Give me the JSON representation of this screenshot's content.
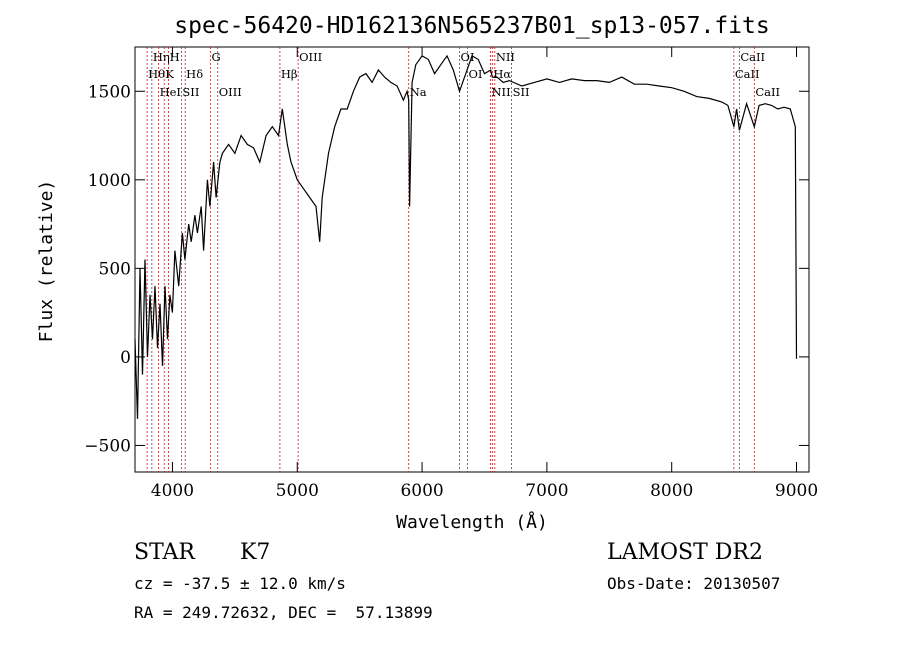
{
  "chart_data": {
    "type": "line",
    "title": "spec-56420-HD162136N565237B01_sp13-057.fits",
    "xlabel": "Wavelength (Å)",
    "ylabel": "Flux (relative)",
    "xlim": [
      3700,
      9100
    ],
    "ylim": [
      -650,
      1750
    ],
    "xticks": [
      4000,
      5000,
      6000,
      7000,
      8000,
      9000
    ],
    "yticks": [
      -500,
      0,
      500,
      1000,
      1500
    ],
    "grid": false,
    "line_color": "#000000",
    "marker_color": "#aa2222",
    "spectral_lines": [
      {
        "label": "Hη",
        "x": 3835,
        "row": 0
      },
      {
        "label": "H",
        "x": 3969,
        "row": 0
      },
      {
        "label": "G",
        "x": 4305,
        "row": 0
      },
      {
        "label": "OIII",
        "x": 5007,
        "row": 0
      },
      {
        "label": "OI",
        "x": 6300,
        "row": 0
      },
      {
        "label": "NII",
        "x": 6583,
        "row": 0
      },
      {
        "label": "CaII",
        "x": 8542,
        "row": 0
      },
      {
        "label": "Hθ",
        "x": 3797,
        "row": 1
      },
      {
        "label": "K",
        "x": 3934,
        "row": 1
      },
      {
        "label": "Hδ",
        "x": 4102,
        "row": 1
      },
      {
        "label": "Hβ",
        "x": 4861,
        "row": 1
      },
      {
        "label": "OI",
        "x": 6364,
        "row": 1
      },
      {
        "label": "Hα",
        "x": 6563,
        "row": 1
      },
      {
        "label": "CaII",
        "x": 8498,
        "row": 1
      },
      {
        "label": "HeI",
        "x": 3889,
        "row": 2
      },
      {
        "label": "SII",
        "x": 4072,
        "row": 2
      },
      {
        "label": "OIII",
        "x": 4363,
        "row": 2
      },
      {
        "label": "Na",
        "x": 5893,
        "row": 2
      },
      {
        "label": "NII",
        "x": 6548,
        "row": 2
      },
      {
        "label": "SII",
        "x": 6717,
        "row": 2
      },
      {
        "label": "CaII",
        "x": 8662,
        "row": 2
      }
    ],
    "series": [
      {
        "x": [
          3700,
          3720,
          3740,
          3760,
          3780,
          3800,
          3820,
          3840,
          3860,
          3880,
          3900,
          3920,
          3940,
          3960,
          3980,
          4000,
          4020,
          4050,
          4080,
          4100,
          4130,
          4150,
          4180,
          4200,
          4230,
          4250,
          4280,
          4300,
          4330,
          4350,
          4380,
          4400,
          4450,
          4500,
          4550,
          4600,
          4650,
          4700,
          4750,
          4800,
          4850,
          4880,
          4920,
          4950,
          5000,
          5050,
          5100,
          5150,
          5180,
          5200,
          5250,
          5300,
          5350,
          5400,
          5450,
          5500,
          5550,
          5600,
          5650,
          5700,
          5750,
          5800,
          5850,
          5880,
          5893,
          5900,
          5920,
          5950,
          6000,
          6050,
          6100,
          6150,
          6200,
          6250,
          6300,
          6350,
          6400,
          6450,
          6500,
          6550,
          6563,
          6600,
          6650,
          6700,
          6800,
          6900,
          7000,
          7100,
          7200,
          7300,
          7400,
          7500,
          7600,
          7700,
          7800,
          7900,
          8000,
          8100,
          8200,
          8300,
          8400,
          8450,
          8498,
          8520,
          8542,
          8600,
          8662,
          8700,
          8750,
          8800,
          8850,
          8900,
          8950,
          8990,
          9000
        ],
        "y": [
          100,
          -350,
          500,
          -100,
          550,
          0,
          350,
          100,
          400,
          50,
          300,
          -50,
          400,
          100,
          350,
          250,
          600,
          400,
          700,
          550,
          750,
          650,
          800,
          700,
          850,
          600,
          1000,
          850,
          1100,
          900,
          1100,
          1150,
          1200,
          1150,
          1250,
          1200,
          1180,
          1100,
          1250,
          1300,
          1250,
          1400,
          1200,
          1100,
          1000,
          950,
          900,
          850,
          650,
          900,
          1150,
          1300,
          1400,
          1400,
          1500,
          1580,
          1600,
          1550,
          1620,
          1580,
          1550,
          1530,
          1450,
          1500,
          1450,
          850,
          1550,
          1650,
          1700,
          1680,
          1600,
          1650,
          1700,
          1620,
          1500,
          1600,
          1700,
          1680,
          1600,
          1620,
          1580,
          1580,
          1550,
          1560,
          1530,
          1550,
          1570,
          1550,
          1570,
          1560,
          1560,
          1550,
          1580,
          1540,
          1540,
          1530,
          1520,
          1500,
          1470,
          1460,
          1440,
          1420,
          1300,
          1400,
          1280,
          1430,
          1300,
          1420,
          1430,
          1420,
          1400,
          1410,
          1400,
          1300,
          -10
        ]
      }
    ]
  },
  "info": {
    "object_type": "STAR",
    "subclass": "K7",
    "survey": "LAMOST DR2",
    "cz": "cz = -37.5 ± 12.0 km/s",
    "obs_date": "Obs-Date: 20130507",
    "coords": "RA = 249.72632, DEC =  57.13899"
  }
}
